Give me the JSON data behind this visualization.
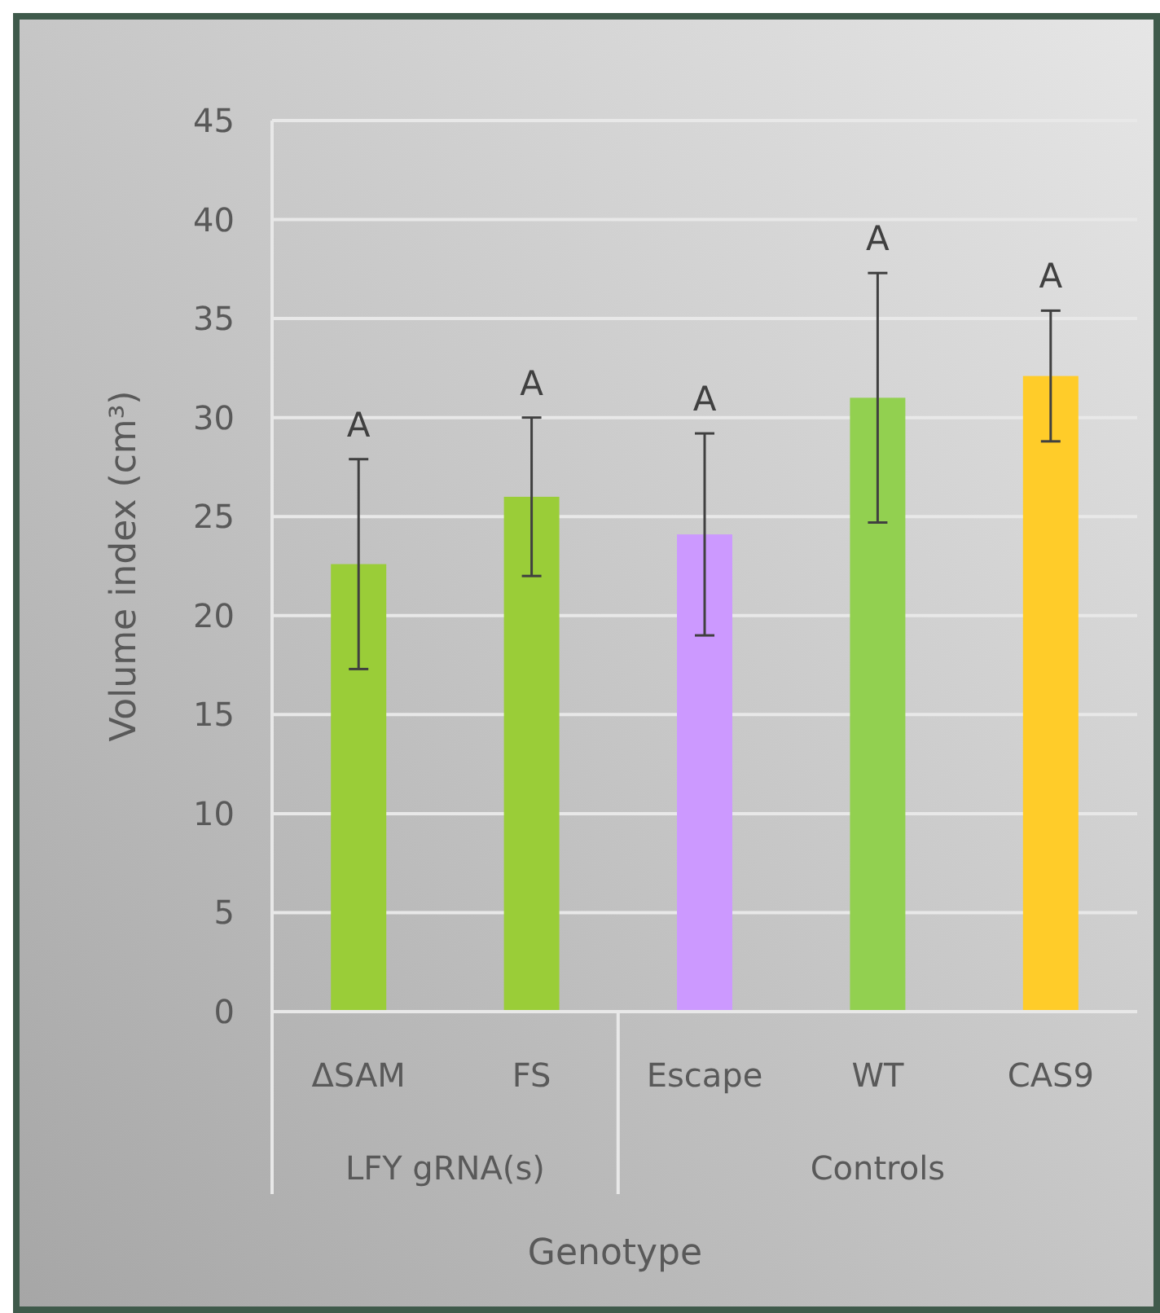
{
  "chart_data": {
    "type": "bar",
    "xlabel": "Genotype",
    "ylabel": "Volume index (cm³)",
    "categories": [
      "ΔSAM",
      "FS",
      "Escape",
      "WT",
      "CAS9"
    ],
    "values": [
      22.6,
      26.0,
      24.1,
      31.0,
      32.1
    ],
    "colors": [
      "#9acd38",
      "#9acd38",
      "#cc99ff",
      "#92d050",
      "#ffcc29"
    ],
    "errors": [
      5.3,
      4.0,
      5.1,
      6.3,
      3.3
    ],
    "ylim": [
      0,
      45
    ],
    "yticks": [
      0,
      5,
      10,
      15,
      20,
      25,
      30,
      35,
      40,
      45
    ],
    "grid": "y",
    "annotations": [
      "A",
      "A",
      "A",
      "A",
      "A",
      "LFY gRNA(s)",
      "Controls"
    ]
  }
}
